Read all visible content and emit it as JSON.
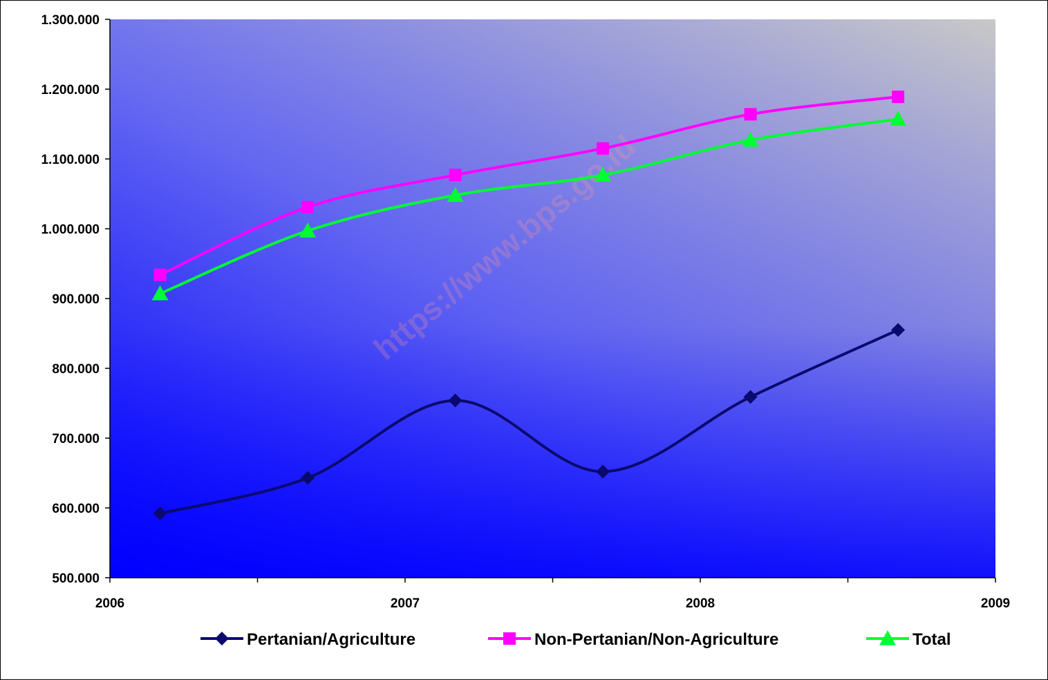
{
  "chart_data": {
    "type": "line",
    "x_ticks": [
      "2006",
      "2007",
      "2008",
      "2009"
    ],
    "xlim": [
      2006,
      2009
    ],
    "x": [
      2006.17,
      2006.67,
      2007.17,
      2007.67,
      2008.17,
      2008.67
    ],
    "ylim": [
      500000,
      1300000
    ],
    "y_ticks": [
      "500.000",
      "600.000",
      "700.000",
      "800.000",
      "900.000",
      "1.000.000",
      "1.100.000",
      "1.200.000",
      "1.300.000"
    ],
    "grid": false,
    "legend_position": "bottom",
    "series": [
      {
        "name": "Pertanian/Agriculture",
        "color": "#0a0a6e",
        "marker": "diamond",
        "values": [
          592000,
          643000,
          754000,
          652000,
          759000,
          855000
        ]
      },
      {
        "name": "Non-Pertanian/Non-Agriculture",
        "color": "#ff00ff",
        "marker": "square",
        "values": [
          934000,
          1031000,
          1077000,
          1115000,
          1164000,
          1189000
        ]
      },
      {
        "name": "Total",
        "color": "#00ff33",
        "marker": "triangle",
        "values": [
          907000,
          997000,
          1048000,
          1077000,
          1127000,
          1157000
        ]
      }
    ],
    "watermark": "https://www.bps.go.id"
  }
}
